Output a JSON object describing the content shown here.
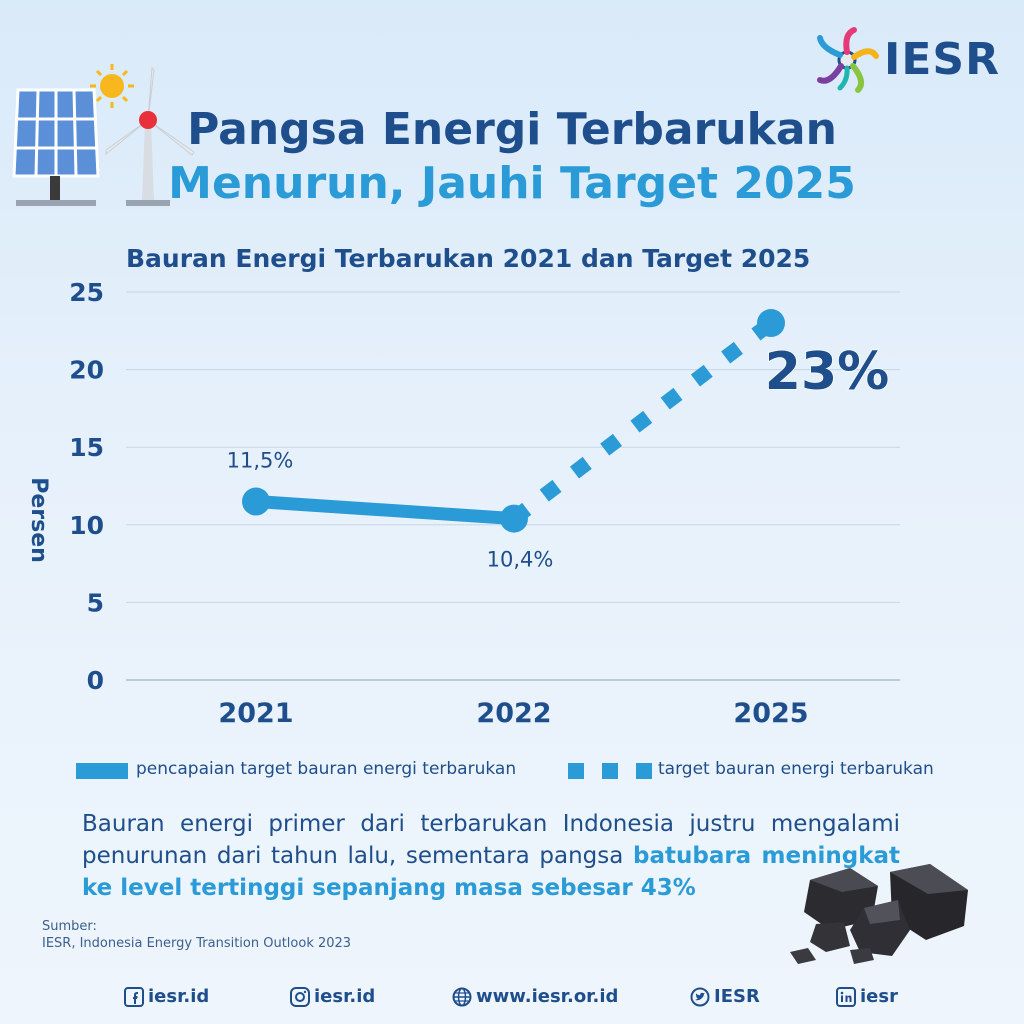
{
  "logo": {
    "text": "IESR"
  },
  "title": {
    "line1": "Pangsa Energi Terbarukan",
    "line2": "Menurun, Jauhi Target 2025"
  },
  "colors": {
    "primary": "#1f4e8c",
    "accent": "#2a9bd6",
    "grid": "#c5d6e6"
  },
  "chart_data": {
    "type": "line",
    "title": "Bauran Energi Terbarukan 2021 dan Target 2025",
    "ylabel": "Persen",
    "xlabel": "",
    "ylim": [
      0,
      25
    ],
    "yticks": [
      "0",
      "5",
      "10",
      "15",
      "20",
      "25"
    ],
    "categories": [
      "2021",
      "2022",
      "2025"
    ],
    "grid": true,
    "series": [
      {
        "name": "pencapaian target bauran energi terbarukan",
        "style": "solid",
        "x": [
          "2021",
          "2022"
        ],
        "values": [
          11.5,
          10.4
        ],
        "labels": [
          "11,5%",
          "10,4%"
        ]
      },
      {
        "name": "target bauran energi terbarukan",
        "style": "dashed",
        "x": [
          "2022",
          "2025"
        ],
        "values": [
          10.4,
          23
        ],
        "labels": [
          "",
          "23%"
        ]
      }
    ]
  },
  "body": {
    "text_plain": "Bauran energi primer dari terbarukan Indonesia justru mengalami penurunan dari tahun lalu, sementara pangsa ",
    "text_highlight": "batubara meningkat ke level tertinggi sepanjang masa sebesar 43%"
  },
  "source": {
    "label": "Sumber:",
    "text": "IESR, Indonesia Energy Transition Outlook 2023"
  },
  "footer": {
    "facebook": "iesr.id",
    "instagram": "iesr.id",
    "web": "www.iesr.or.id",
    "twitter": "IESR",
    "linkedin": "iesr"
  },
  "icons": [
    "sun-icon",
    "solar-panel-icon",
    "wind-turbine-icon",
    "coal-icon",
    "facebook-icon",
    "instagram-icon",
    "globe-icon",
    "twitter-icon",
    "linkedin-icon"
  ]
}
